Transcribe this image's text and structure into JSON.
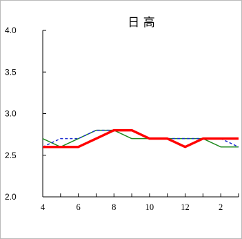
{
  "chart_data": {
    "type": "line",
    "title": "日 高",
    "xlabel": "",
    "ylabel": "",
    "x": [
      4,
      5,
      6,
      7,
      8,
      9,
      10,
      11,
      12,
      13,
      14,
      15
    ],
    "x_tick_labels": [
      "4",
      "6",
      "8",
      "10",
      "12",
      "2"
    ],
    "y_tick_labels": [
      "4.0",
      "3.5",
      "3.0",
      "2.5",
      "2.0"
    ],
    "ylim": [
      2.0,
      4.0
    ],
    "grid": false,
    "legend": "none",
    "series": [
      {
        "color": "#1f8a1f",
        "style": "solid",
        "values": [
          2.7,
          2.6,
          2.7,
          2.8,
          2.8,
          2.7,
          2.7,
          2.7,
          2.7,
          2.7,
          2.6,
          2.6
        ]
      },
      {
        "color": "#1a2bd0",
        "style": "dashed",
        "values": [
          2.6,
          2.7,
          2.7,
          2.8,
          2.8,
          2.8,
          2.7,
          2.7,
          2.7,
          2.7,
          2.7,
          2.6
        ]
      },
      {
        "color": "#ff0000",
        "style": "thick",
        "values": [
          2.6,
          2.6,
          2.6,
          2.7,
          2.8,
          2.8,
          2.7,
          2.7,
          2.6,
          2.7,
          2.7,
          2.7
        ]
      }
    ]
  }
}
